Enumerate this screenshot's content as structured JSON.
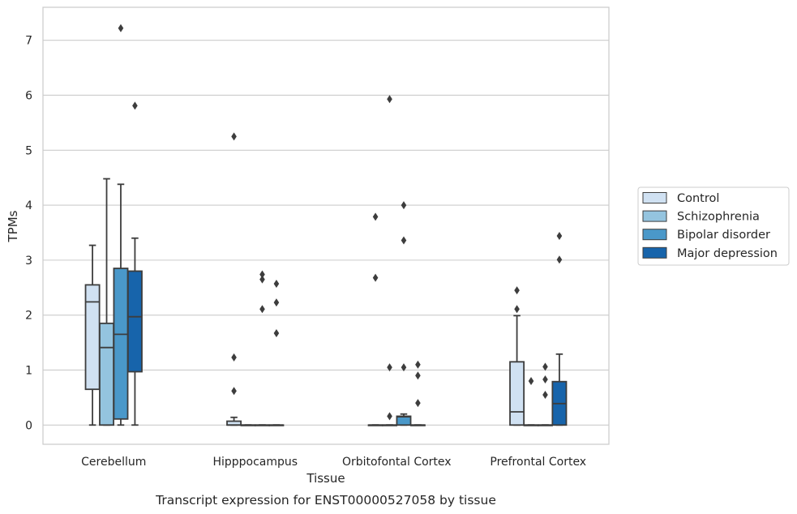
{
  "chart_data": {
    "type": "box",
    "title": "",
    "caption": "Transcript expression for ENST00000527058 by tissue",
    "xlabel": "Tissue",
    "ylabel": "TPMs",
    "ylim": [
      -0.35,
      7.6
    ],
    "yticks": [
      "0",
      "1",
      "2",
      "3",
      "4",
      "5",
      "6",
      "7"
    ],
    "grid": "horizontal",
    "legend_position": "right",
    "categories": [
      "Cerebellum",
      "Hipppocampus",
      "Orbitofontal Cortex",
      "Prefrontal Cortex"
    ],
    "series": [
      {
        "name": "Control",
        "color": "#d0e1f2",
        "boxes": [
          {
            "whisker_low": 0,
            "q1": 0.65,
            "median": 2.24,
            "q3": 2.55,
            "whisker_high": 3.27,
            "outliers": []
          },
          {
            "whisker_low": 0,
            "q1": 0,
            "median": 0,
            "q3": 0.07,
            "whisker_high": 0.14,
            "outliers": [
              0.62,
              1.23,
              5.25
            ]
          },
          {
            "whisker_low": 0,
            "q1": 0,
            "median": 0,
            "q3": 0,
            "whisker_high": 0,
            "outliers": [
              2.68,
              3.79
            ]
          },
          {
            "whisker_low": 0,
            "q1": 0,
            "median": 0.24,
            "q3": 1.15,
            "whisker_high": 1.99,
            "outliers": [
              2.11,
              2.45
            ]
          }
        ]
      },
      {
        "name": "Schizophrenia",
        "color": "#94c4df",
        "boxes": [
          {
            "whisker_low": 0,
            "q1": 0,
            "median": 1.41,
            "q3": 1.85,
            "whisker_high": 4.48,
            "outliers": []
          },
          {
            "whisker_low": 0,
            "q1": 0,
            "median": 0,
            "q3": 0,
            "whisker_high": 0,
            "outliers": []
          },
          {
            "whisker_low": 0,
            "q1": 0,
            "median": 0,
            "q3": 0,
            "whisker_high": 0,
            "outliers": [
              0.16,
              1.05,
              5.93
            ]
          },
          {
            "whisker_low": 0,
            "q1": 0,
            "median": 0,
            "q3": 0,
            "whisker_high": 0,
            "outliers": [
              0.8
            ]
          }
        ]
      },
      {
        "name": "Bipolar disorder",
        "color": "#4a98c9",
        "boxes": [
          {
            "whisker_low": 0,
            "q1": 0.11,
            "median": 1.65,
            "q3": 2.85,
            "whisker_high": 4.38,
            "outliers": [
              7.22
            ]
          },
          {
            "whisker_low": 0,
            "q1": 0,
            "median": 0,
            "q3": 0,
            "whisker_high": 0,
            "outliers": [
              2.11,
              2.65,
              2.74
            ]
          },
          {
            "whisker_low": 0,
            "q1": 0,
            "median": 0.15,
            "q3": 0.16,
            "whisker_high": 0.2,
            "outliers": [
              1.05,
              3.36,
              4.0
            ]
          },
          {
            "whisker_low": 0,
            "q1": 0,
            "median": 0,
            "q3": 0,
            "whisker_high": 0,
            "outliers": [
              0.55,
              0.83,
              1.06
            ]
          }
        ]
      },
      {
        "name": "Major depression",
        "color": "#1764ab",
        "boxes": [
          {
            "whisker_low": 0,
            "q1": 0.97,
            "median": 1.97,
            "q3": 2.8,
            "whisker_high": 3.4,
            "outliers": [
              5.81
            ]
          },
          {
            "whisker_low": 0,
            "q1": 0,
            "median": 0,
            "q3": 0,
            "whisker_high": 0,
            "outliers": [
              1.67,
              2.23,
              2.57
            ]
          },
          {
            "whisker_low": 0,
            "q1": 0,
            "median": 0,
            "q3": 0,
            "whisker_high": 0,
            "outliers": [
              0.4,
              0.9,
              1.1
            ]
          },
          {
            "whisker_low": 0,
            "q1": 0,
            "median": 0.39,
            "q3": 0.79,
            "whisker_high": 1.29,
            "outliers": [
              3.01,
              3.44
            ]
          }
        ]
      }
    ]
  }
}
